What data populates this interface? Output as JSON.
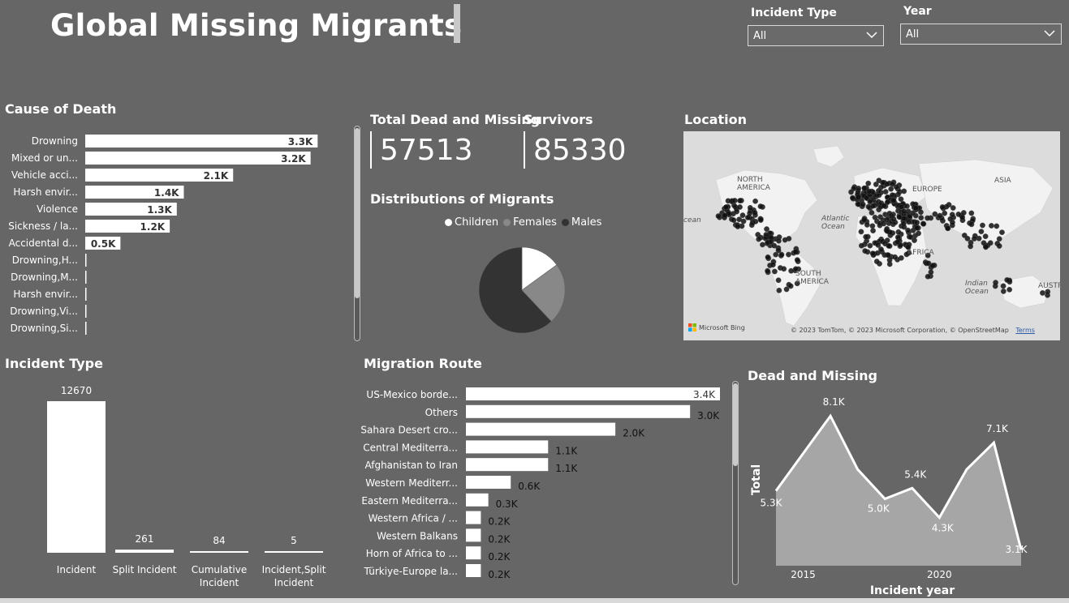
{
  "header": {
    "title": "Global Missing Migrants"
  },
  "filters": {
    "incident_type": {
      "label": "Incident Type",
      "value": "All"
    },
    "year": {
      "label": "Year",
      "value": "All"
    }
  },
  "kpis": {
    "dead_missing": {
      "label": "Total Dead and Missing",
      "value": "57513"
    },
    "survivors": {
      "label": "Survivors",
      "value": "85330"
    }
  },
  "sections": {
    "cause_of_death": "Cause of Death",
    "distribution": "Distributions of Migrants",
    "location": "Location",
    "incident_type": "Incident Type",
    "migration_route": "Migration Route",
    "dead_missing": "Dead and Missing"
  },
  "map": {
    "labels": [
      "NORTH AMERICA",
      "Atlantic Ocean",
      "SOUTH AMERICA",
      "ASIA",
      "Indian Ocean",
      "AUSTRALIA",
      "AFRICA",
      "EUROPE",
      "cean"
    ],
    "bing_label": "Microsoft Bing",
    "credit": "© 2023 TomTom, © 2023 Microsoft Corporation, © OpenStreetMap",
    "terms": "Terms"
  },
  "colors": {
    "background": "#666666",
    "bar": "#ffffff",
    "children": "#ffffff",
    "females": "#888888",
    "males": "#333333",
    "area_fill": "#a6a6a6",
    "map_points": "#111111"
  },
  "chart_data": [
    {
      "id": "cause_of_death",
      "type": "bar",
      "orientation": "horizontal",
      "title": "Cause of Death",
      "categories": [
        "Drowning",
        "Mixed or un...",
        "Vehicle acci...",
        "Harsh envir...",
        "Violence",
        "Sickness / la...",
        "Accidental d...",
        "Drowning,H...",
        "Drowning,M...",
        "Harsh envir...",
        "Drowning,Vi...",
        "Drowning,Si..."
      ],
      "values": [
        3300,
        3200,
        2100,
        1400,
        1300,
        1200,
        500,
        5,
        4,
        4,
        3,
        3
      ],
      "data_labels": [
        "3.3K",
        "3.2K",
        "2.1K",
        "1.4K",
        "1.3K",
        "1.2K",
        "0.5K",
        "",
        "",
        "",
        "",
        ""
      ],
      "xlim": [
        0,
        3400
      ]
    },
    {
      "id": "distribution",
      "type": "pie",
      "title": "Distributions of Migrants",
      "categories": [
        "Children",
        "Females",
        "Males"
      ],
      "values": [
        15,
        23,
        62
      ],
      "colors": [
        "#ffffff",
        "#888888",
        "#333333"
      ],
      "legend": "top"
    },
    {
      "id": "incident_type",
      "type": "bar",
      "orientation": "vertical",
      "title": "Incident Type",
      "categories": [
        "Incident",
        "Split Incident",
        "Cumulative Incident",
        "Incident,Split Incident"
      ],
      "values": [
        12670,
        261,
        84,
        5
      ],
      "data_labels": [
        "12670",
        "261",
        "84",
        "5"
      ],
      "ylim": [
        0,
        12670
      ]
    },
    {
      "id": "migration_route",
      "type": "bar",
      "orientation": "horizontal",
      "title": "Migration Route",
      "categories": [
        "US-Mexico borde...",
        "Others",
        "Sahara Desert cro...",
        "Central Mediterra...",
        "Afghanistan to Iran",
        "Western Mediterr...",
        "Eastern Mediterra...",
        "Western Africa / ...",
        "Western Balkans",
        "Horn of Africa to ...",
        "Türkiye-Europe la..."
      ],
      "values": [
        3400,
        3000,
        2000,
        1100,
        1100,
        600,
        300,
        200,
        200,
        200,
        200
      ],
      "data_labels": [
        "3.4K",
        "3.0K",
        "2.0K",
        "1.1K",
        "1.1K",
        "0.6K",
        "0.3K",
        "0.2K",
        "0.2K",
        "0.2K",
        "0.2K"
      ],
      "xlim": [
        0,
        3400
      ]
    },
    {
      "id": "dead_missing",
      "type": "area",
      "title": "Dead and Missing",
      "xlabel": "Incident year",
      "ylabel": "Total",
      "x": [
        2014,
        2016,
        2017,
        2018,
        2019,
        2020,
        2021,
        2022,
        2023
      ],
      "values": [
        5300,
        8100,
        6100,
        5000,
        5400,
        4300,
        6100,
        7100,
        3100
      ],
      "data_labels": [
        "5.3K",
        "8.1K",
        "",
        "5.0K",
        "5.4K",
        "4.3K",
        "",
        "7.1K",
        "3.1K"
      ],
      "x_ticks": [
        "2015",
        "2020"
      ],
      "ylim": [
        2500,
        8500
      ]
    }
  ]
}
